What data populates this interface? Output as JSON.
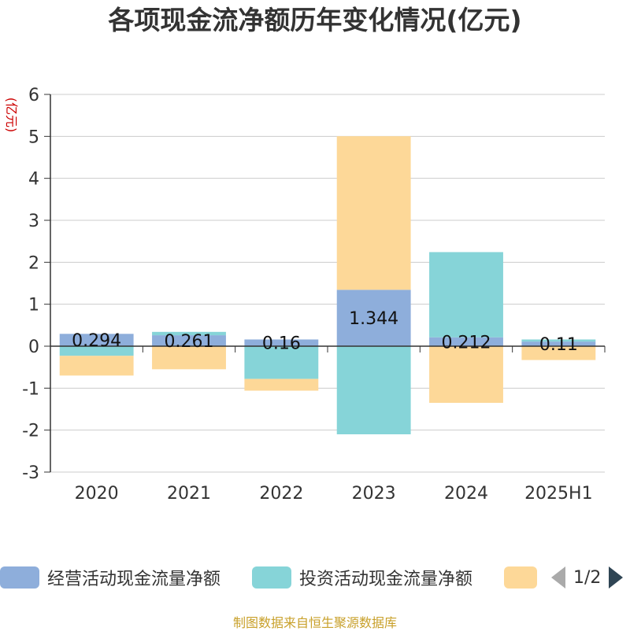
{
  "title": "各项现金流净额历年变化情况(亿元)",
  "source_note": "制图数据来自恒生聚源数据库",
  "legend": {
    "items": [
      {
        "label": "经营活动现金流量净额",
        "color": "#8eaedb"
      },
      {
        "label": "投资活动现金流量净额",
        "color": "#86d4d8"
      },
      {
        "label": "",
        "color": "#fdd898"
      }
    ],
    "page_text": "1/2"
  },
  "chart_data": {
    "type": "bar",
    "stacked": true,
    "categories": [
      "2020",
      "2021",
      "2022",
      "2023",
      "2024",
      "2025H1"
    ],
    "ylabel": "(亿元)",
    "ylim": [
      -3,
      6
    ],
    "yticks": [
      6,
      5,
      4,
      3,
      2,
      1,
      0,
      -1,
      -2,
      -3
    ],
    "grid": true,
    "legend_position": "bottom",
    "series": [
      {
        "name": "经营活动现金流量净额",
        "color": "#8eaedb",
        "values": [
          0.294,
          0.261,
          0.16,
          1.344,
          0.212,
          0.11
        ],
        "data_labels": [
          "0.294",
          "0.261",
          "0.16",
          "1.344",
          "0.212",
          "0.11"
        ]
      },
      {
        "name": "投资活动现金流量净额",
        "color": "#86d4d8",
        "values": [
          -0.23,
          0.08,
          -0.78,
          -2.1,
          2.03,
          0.05
        ]
      },
      {
        "name": "",
        "color": "#fdd898",
        "values": [
          -0.47,
          -0.55,
          -0.28,
          3.66,
          -1.35,
          -0.33
        ]
      }
    ]
  }
}
